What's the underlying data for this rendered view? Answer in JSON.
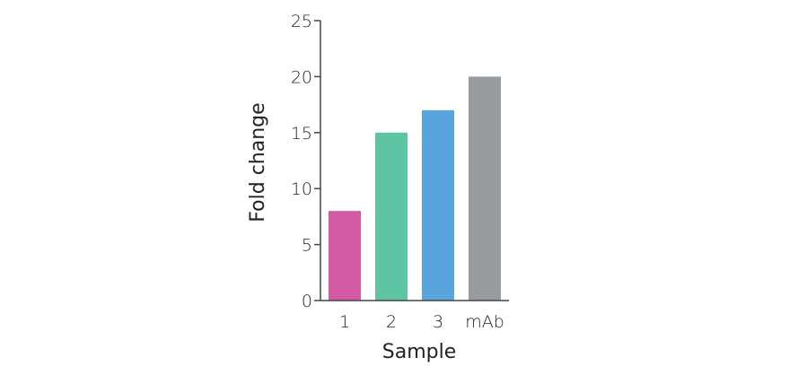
{
  "chart_data": {
    "type": "bar",
    "title": "",
    "xlabel": "Sample",
    "ylabel": "Fold change",
    "categories": [
      "1",
      "2",
      "3",
      "mAb"
    ],
    "values": [
      8,
      15,
      17,
      20
    ],
    "ylim": [
      0,
      25
    ],
    "yticks": [
      0,
      5,
      10,
      15,
      20,
      25
    ],
    "yticks_text": [
      "0",
      "5",
      "10",
      "15",
      "20",
      "25"
    ],
    "grid": false,
    "legend": "none",
    "colors": [
      "#d35ba6",
      "#5ec4a4",
      "#58a4dc",
      "#999c9f"
    ]
  }
}
